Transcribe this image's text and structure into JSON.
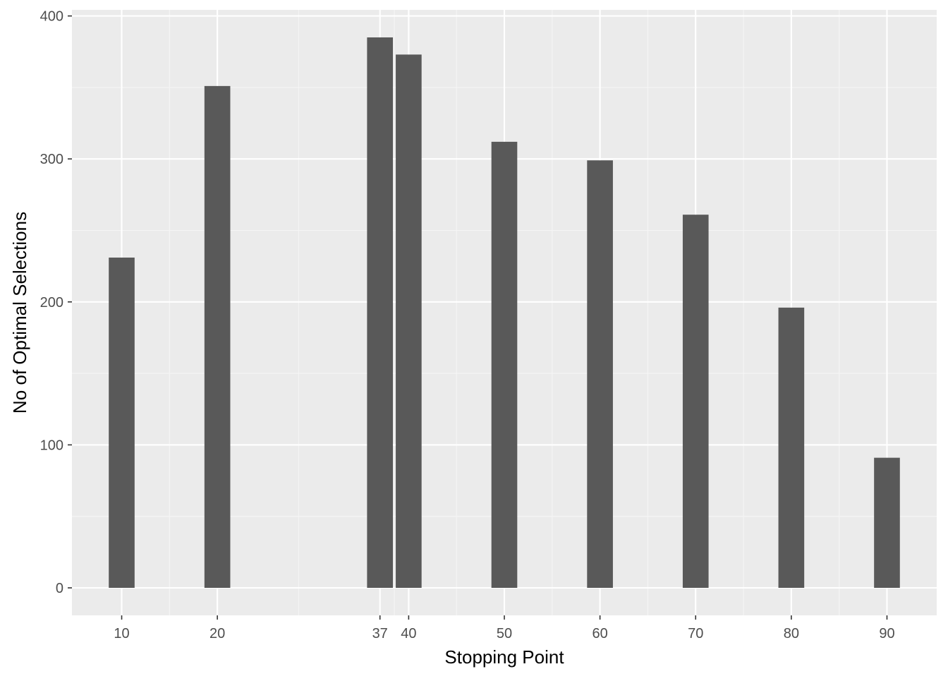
{
  "chart_data": {
    "type": "bar",
    "title": "",
    "xlabel": "Stopping Point",
    "ylabel": "No of Optimal Selections",
    "x": [
      10,
      20,
      37,
      40,
      50,
      60,
      70,
      80,
      90
    ],
    "values": [
      231,
      351,
      385,
      373,
      312,
      299,
      261,
      196,
      91
    ],
    "x_ticks": [
      10,
      20,
      37,
      40,
      50,
      60,
      70,
      80,
      90
    ],
    "x_tick_labels": [
      "10",
      "20",
      "37",
      "40",
      "50",
      "60",
      "70",
      "80",
      "90"
    ],
    "y_ticks": [
      0,
      100,
      200,
      300,
      400
    ],
    "y_tick_labels": [
      "0",
      "100",
      "200",
      "300",
      "400"
    ],
    "xlim": [
      4.8,
      95.2
    ],
    "ylim": [
      -19.25,
      404.25
    ],
    "bar_width": 2.7,
    "grid": true,
    "legend": "none",
    "colors": {
      "bar": "#595959",
      "panel_background": "#ebebeb",
      "grid_major": "#ffffff",
      "grid_minor": "#f5f5f5",
      "tick_mark": "#333333"
    }
  }
}
